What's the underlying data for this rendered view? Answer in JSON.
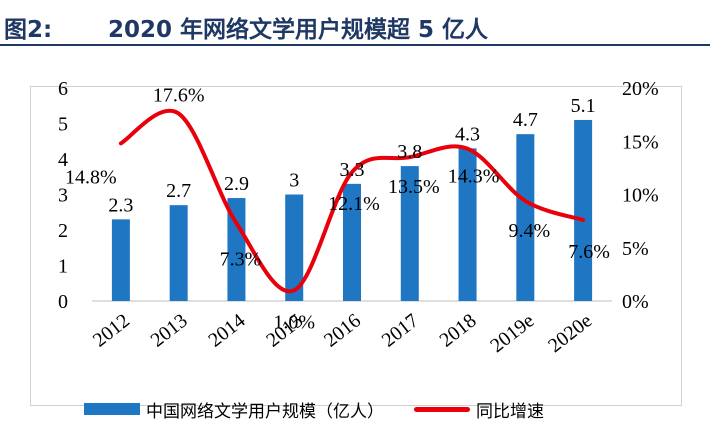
{
  "header": {
    "figure_label": "图2:",
    "title": "2020 年网络文学用户规模超 5 亿人"
  },
  "chart_data": {
    "type": "bar",
    "categories": [
      "2012",
      "2013",
      "2014",
      "2015",
      "2016",
      "2017",
      "2018",
      "2019e",
      "2020e"
    ],
    "series": [
      {
        "name": "中国网络文学用户规模（亿人）",
        "type": "bar",
        "axis": "left",
        "color": "#1f77c4",
        "values": [
          2.3,
          2.7,
          2.9,
          3.0,
          3.3,
          3.8,
          4.3,
          4.7,
          5.1
        ],
        "labels": [
          "2.3",
          "2.7",
          "2.9",
          "3",
          "3.3",
          "3.8",
          "4.3",
          "4.7",
          "5.1"
        ]
      },
      {
        "name": "同比增速",
        "type": "line",
        "smooth": true,
        "axis": "right",
        "color": "#e8000b",
        "values": [
          14.8,
          17.6,
          7.3,
          1.0,
          12.1,
          13.5,
          14.3,
          9.4,
          7.6
        ],
        "labels": [
          "14.8%",
          "17.6%",
          "7.3%",
          "1.0%",
          "12.1%",
          "13.5%",
          "14.3%",
          "9.4%",
          "7.6%"
        ]
      }
    ],
    "y_left": {
      "ticks": [
        "0",
        "1",
        "2",
        "3",
        "4",
        "5",
        "6"
      ],
      "ylim": [
        0,
        6
      ]
    },
    "y_right": {
      "ticks": [
        "0%",
        "5%",
        "10%",
        "15%",
        "20%"
      ],
      "ylim": [
        0,
        20
      ]
    },
    "legend_position": "bottom",
    "grid": false
  }
}
